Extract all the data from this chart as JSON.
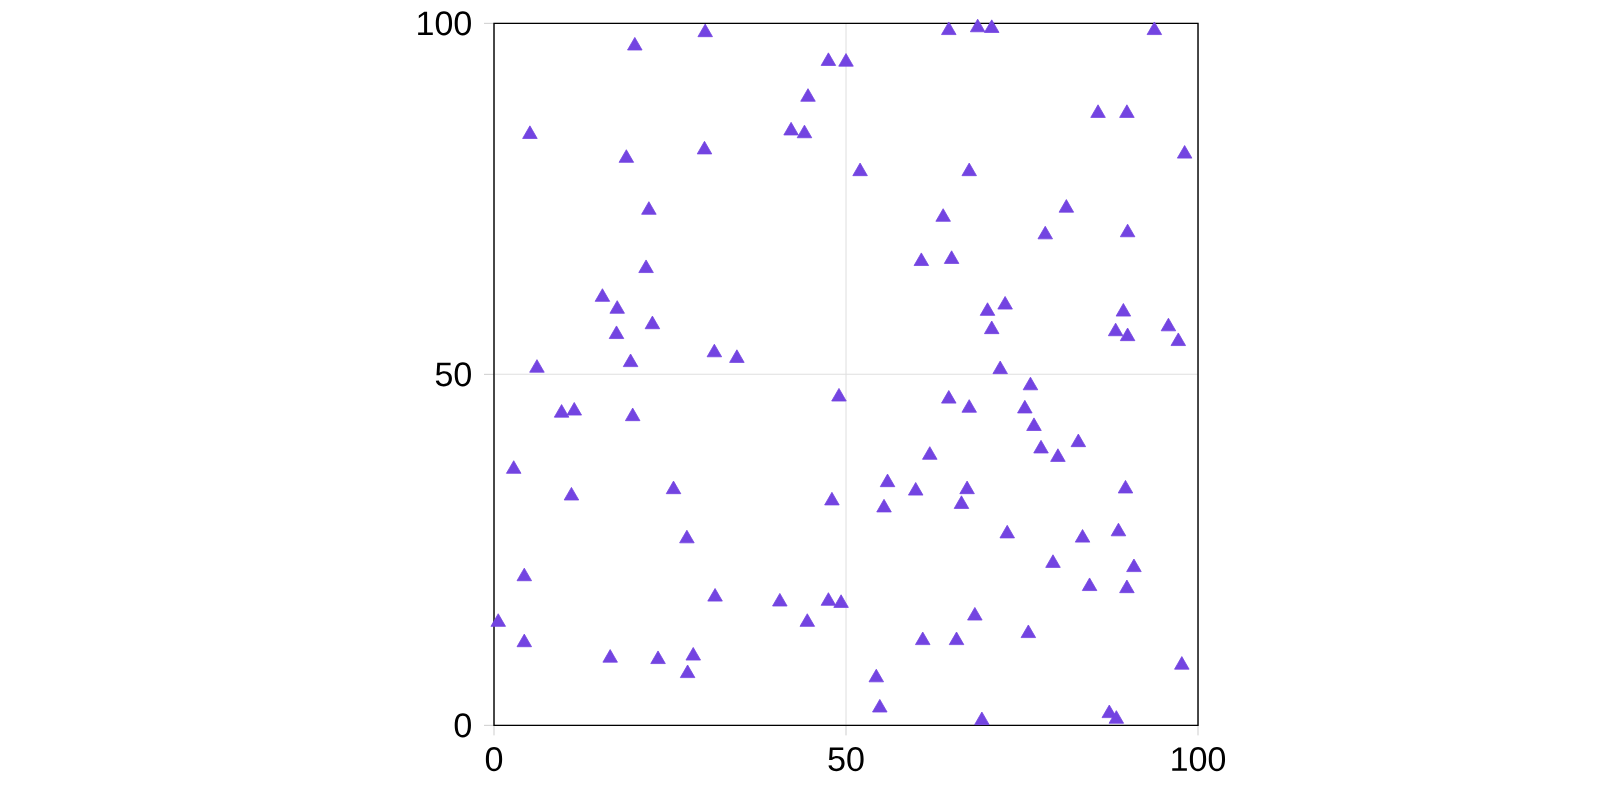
{
  "chart_data": {
    "type": "scatter",
    "marker": "triangle",
    "grid": true,
    "xlim": [
      0,
      100
    ],
    "ylim": [
      0,
      100
    ],
    "xticks": [
      0,
      50,
      100
    ],
    "yticks": [
      0,
      50,
      100
    ],
    "series": [
      {
        "color": "#7344e1",
        "x": [
          20.0,
          30.0,
          5.1,
          18.8,
          29.9,
          22.0,
          21.6,
          15.4,
          17.5,
          22.5,
          17.4,
          19.4,
          6.1,
          31.3,
          34.5,
          9.6,
          11.4,
          19.7,
          2.8,
          11.0,
          25.5,
          27.4,
          4.3,
          31.4,
          0.6,
          4.3,
          16.5,
          23.3,
          28.3,
          27.5,
          40.6,
          47.5,
          49.3,
          44.5,
          48.0,
          49.0,
          47.5,
          50.0,
          44.6,
          42.2,
          44.1,
          52.0,
          64.6,
          68.7,
          70.7,
          93.8,
          98.1,
          89.9,
          85.8,
          81.3,
          78.3,
          90.0,
          67.5,
          63.8,
          60.7,
          65.0,
          70.1,
          72.6,
          70.7,
          89.4,
          88.3,
          90.0,
          95.8,
          97.2,
          71.9,
          76.2,
          64.6,
          67.5,
          75.4,
          76.7,
          77.7,
          80.1,
          83.0,
          61.9,
          55.9,
          59.9,
          67.2,
          66.4,
          55.4,
          89.7,
          72.9,
          83.6,
          88.7,
          79.4,
          90.9,
          84.6,
          89.9,
          68.3,
          75.9,
          60.9,
          65.7,
          97.7,
          54.3,
          54.8,
          69.3,
          87.4,
          88.4
        ],
        "values": [
          96.8,
          98.7,
          84.2,
          80.8,
          82.0,
          73.4,
          65.1,
          61.0,
          59.3,
          57.1,
          55.7,
          51.7,
          50.9,
          53.1,
          52.3,
          44.5,
          44.8,
          44.0,
          36.5,
          32.7,
          33.6,
          26.6,
          21.2,
          18.3,
          14.7,
          11.8,
          9.6,
          9.4,
          9.9,
          7.4,
          17.6,
          17.7,
          17.4,
          14.7,
          32.0,
          46.8,
          94.6,
          94.5,
          89.5,
          84.7,
          84.3,
          78.9,
          99.0,
          99.4,
          99.3,
          99.0,
          81.4,
          87.2,
          87.2,
          73.7,
          69.9,
          70.2,
          78.9,
          72.4,
          66.1,
          66.4,
          59.0,
          59.9,
          56.4,
          58.9,
          56.1,
          55.4,
          56.8,
          54.7,
          50.7,
          48.4,
          46.5,
          45.2,
          45.1,
          42.6,
          39.4,
          38.2,
          40.3,
          38.5,
          34.6,
          33.4,
          33.6,
          31.5,
          31.0,
          33.7,
          27.3,
          26.7,
          27.6,
          23.1,
          22.5,
          19.8,
          19.5,
          15.6,
          13.1,
          12.1,
          12.1,
          8.6,
          6.8,
          2.5,
          0.7,
          1.7,
          0.9
        ]
      }
    ]
  }
}
